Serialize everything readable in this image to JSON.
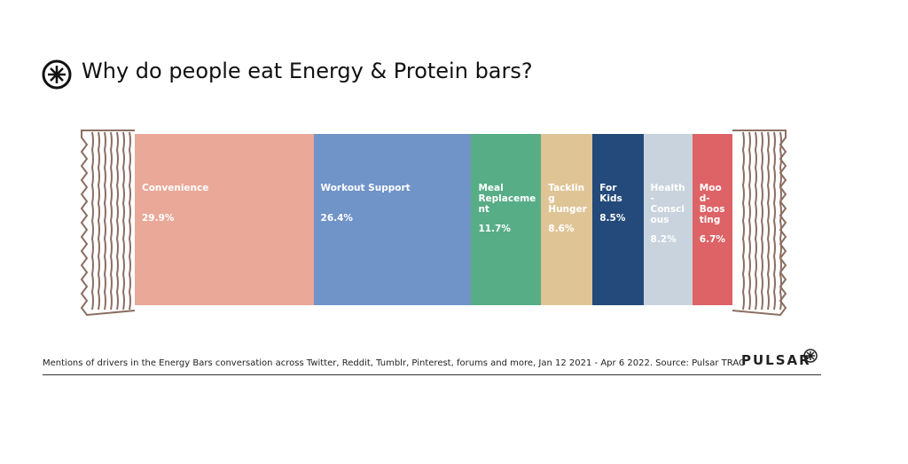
{
  "chart_data": {
    "type": "bar",
    "stacked": true,
    "orientation": "horizontal",
    "title": "Why do people eat Energy & Protein bars?",
    "categories": [
      "Convenience",
      "Workout Support",
      "Meal Replacement",
      "Tackling Hunger",
      "For Kids",
      "Health-Conscious",
      "Mood-Boosting"
    ],
    "values": [
      29.9,
      26.4,
      11.7,
      8.6,
      8.5,
      8.2,
      6.7
    ],
    "value_labels": [
      "29.9%",
      "26.4%",
      "11.7%",
      "8.6%",
      "8.5%",
      "8.2%",
      "6.7%"
    ],
    "colors": [
      "#e9a898",
      "#7093c8",
      "#57ad86",
      "#dfc596",
      "#234a7a",
      "#c9d3dd",
      "#dd6367"
    ],
    "footnote": "Mentions of drivers in the Energy Bars conversation across Twitter, Reddit, Tumblr, Pinterest, forums and more, Jan 12 2021 - Apr 6 2022. Source: Pulsar TRAC",
    "brand": "PULSAR"
  }
}
